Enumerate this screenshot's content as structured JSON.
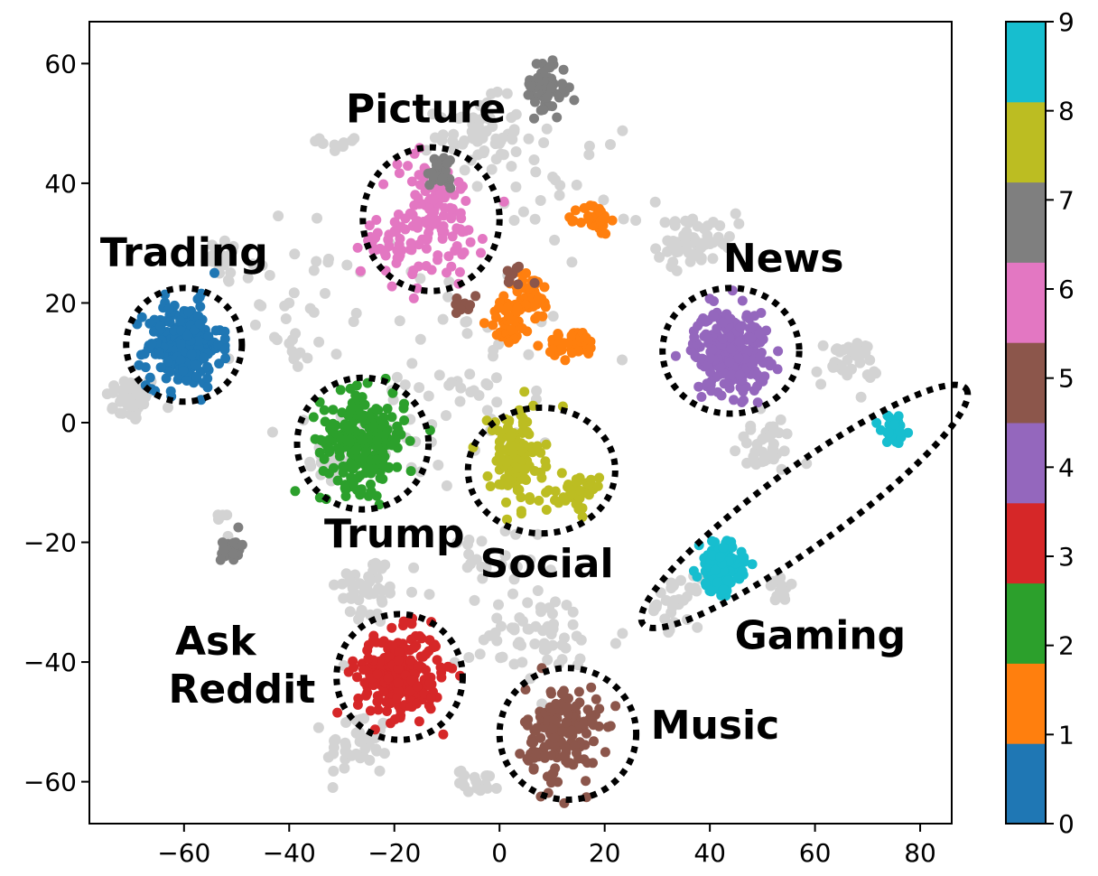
{
  "chart_data": {
    "type": "scatter",
    "title": "",
    "xlabel": "",
    "ylabel": "",
    "xlim": [
      -78,
      86
    ],
    "ylim": [
      -67,
      67
    ],
    "x_ticks": [
      -60,
      -40,
      -20,
      0,
      20,
      40,
      60,
      80
    ],
    "y_ticks": [
      -60,
      -40,
      -20,
      0,
      20,
      40,
      60
    ],
    "x_tick_labels": [
      "−60",
      "−40",
      "−20",
      "0",
      "20",
      "40",
      "60",
      "80"
    ],
    "y_tick_labels": [
      "−60",
      "−40",
      "−20",
      "0",
      "20",
      "40",
      "60"
    ],
    "grid": false,
    "colormap": "tab10",
    "colorbar": {
      "range": [
        0,
        9
      ],
      "ticks": [
        "0",
        "1",
        "2",
        "3",
        "4",
        "5",
        "6",
        "7",
        "8",
        "9"
      ],
      "colors": [
        "#1f77b4",
        "#ff7f0e",
        "#2ca02c",
        "#d62728",
        "#9467bd",
        "#8c564b",
        "#e377c2",
        "#7f7f7f",
        "#bcbd22",
        "#17becf"
      ]
    },
    "background_color": "#d3d3d3",
    "background_clusters": [
      {
        "cx": -70,
        "cy": 4,
        "sx": 2.5,
        "sy": 2,
        "n": 45
      },
      {
        "cx": -52,
        "cy": 27,
        "sx": 2,
        "sy": 2,
        "n": 20
      },
      {
        "cx": -27,
        "cy": -3,
        "sx": 4,
        "sy": 3,
        "n": 55
      },
      {
        "cx": -33,
        "cy": -7,
        "sx": 2,
        "sy": 2,
        "n": 15
      },
      {
        "cx": -25,
        "cy": -28,
        "sx": 3,
        "sy": 3,
        "n": 45
      },
      {
        "cx": -27,
        "cy": -54,
        "sx": 3,
        "sy": 3,
        "n": 40
      },
      {
        "cx": -4,
        "cy": 48,
        "sx": 4,
        "sy": 3,
        "n": 60
      },
      {
        "cx": -30,
        "cy": 47,
        "sx": 2,
        "sy": 1,
        "n": 10
      },
      {
        "cx": 36,
        "cy": 30,
        "sx": 3,
        "sy": 2,
        "n": 50
      },
      {
        "cx": 42,
        "cy": 32,
        "sx": 1.5,
        "sy": 1.5,
        "n": 10
      },
      {
        "cx": 66,
        "cy": 10,
        "sx": 3,
        "sy": 2,
        "n": 35
      },
      {
        "cx": 50,
        "cy": -4,
        "sx": 3,
        "sy": 2.5,
        "n": 35
      },
      {
        "cx": 34,
        "cy": -30,
        "sx": 2,
        "sy": 2,
        "n": 30
      },
      {
        "cx": 54,
        "cy": -28,
        "sx": 1.5,
        "sy": 1,
        "n": 12
      },
      {
        "cx": 8,
        "cy": -36,
        "sx": 8,
        "sy": 4,
        "n": 60
      },
      {
        "cx": -4,
        "cy": -60,
        "sx": 2,
        "sy": 1,
        "n": 20
      },
      {
        "cx": -39,
        "cy": 22,
        "sx": 6,
        "sy": 6,
        "n": 30
      },
      {
        "cx": -11,
        "cy": 5,
        "sx": 6,
        "sy": 8,
        "n": 35
      },
      {
        "cx": 12,
        "cy": 40,
        "sx": 8,
        "sy": 6,
        "n": 30
      },
      {
        "cx": 0,
        "cy": 12,
        "sx": 8,
        "sy": 8,
        "n": 25
      },
      {
        "cx": -5,
        "cy": -25,
        "sx": 6,
        "sy": 4,
        "n": 25
      },
      {
        "cx": -53,
        "cy": -16,
        "sx": 1,
        "sy": 1,
        "n": 5
      },
      {
        "cx": -38,
        "cy": 12,
        "sx": 2,
        "sy": 2,
        "n": 10
      }
    ],
    "clusters": [
      {
        "label": 0,
        "cx": -60,
        "cy": 13,
        "sx": 3.5,
        "sy": 3.5,
        "n": 260
      },
      {
        "label": 1,
        "cx": 18,
        "cy": 34,
        "sx": 1.5,
        "sy": 1.3,
        "n": 40
      },
      {
        "label": 1,
        "cx": 6,
        "cy": 21,
        "sx": 2,
        "sy": 2,
        "n": 40
      },
      {
        "label": 1,
        "cx": 2,
        "cy": 17,
        "sx": 2,
        "sy": 2,
        "n": 40
      },
      {
        "label": 1,
        "cx": 14,
        "cy": 13,
        "sx": 2.5,
        "sy": 1.2,
        "n": 40
      },
      {
        "label": 2,
        "cx": -26,
        "cy": -3,
        "sx": 4,
        "sy": 4,
        "n": 230
      },
      {
        "label": 3,
        "cx": -19,
        "cy": -42,
        "sx": 4,
        "sy": 3.5,
        "n": 250
      },
      {
        "label": 4,
        "cx": 44,
        "cy": 12,
        "sx": 3.5,
        "sy": 3.5,
        "n": 260
      },
      {
        "label": 5,
        "cx": 12,
        "cy": -52,
        "sx": 3.5,
        "sy": 4,
        "n": 160
      },
      {
        "label": 5,
        "cx": -7,
        "cy": 20,
        "sx": 1,
        "sy": 1,
        "n": 10
      },
      {
        "label": 5,
        "cx": 4,
        "cy": 25,
        "sx": 1.5,
        "sy": 1,
        "n": 8
      },
      {
        "label": 6,
        "cx": -13,
        "cy": 34,
        "sx": 5,
        "sy": 5,
        "n": 120
      },
      {
        "label": 6,
        "cx": -20,
        "cy": 30,
        "sx": 3,
        "sy": 2,
        "n": 30
      },
      {
        "label": 7,
        "cx": 9,
        "cy": 56,
        "sx": 2,
        "sy": 2.5,
        "n": 60
      },
      {
        "label": 7,
        "cx": -11,
        "cy": 42,
        "sx": 1.5,
        "sy": 1.5,
        "n": 25
      },
      {
        "label": 7,
        "cx": -51,
        "cy": -21,
        "sx": 1,
        "sy": 1.2,
        "n": 25
      },
      {
        "label": 8,
        "cx": 3,
        "cy": -6,
        "sx": 2.5,
        "sy": 4,
        "n": 130
      },
      {
        "label": 8,
        "cx": 15,
        "cy": -12,
        "sx": 2,
        "sy": 1.5,
        "n": 40
      },
      {
        "label": 9,
        "cx": 42,
        "cy": -24,
        "sx": 2,
        "sy": 2,
        "n": 150
      },
      {
        "label": 9,
        "cx": 75,
        "cy": -1,
        "sx": 1.2,
        "sy": 1.2,
        "n": 40
      }
    ],
    "annotations": [
      {
        "text": "Trading",
        "x": -60,
        "y": 28
      },
      {
        "text": "Picture",
        "x": -14,
        "y": 52
      },
      {
        "text": "News",
        "x": 54,
        "y": 27
      },
      {
        "text": "Trump",
        "x": -20,
        "y": -19
      },
      {
        "text": "Social",
        "x": 9,
        "y": -24
      },
      {
        "text": "Gaming",
        "x": 61,
        "y": -36
      },
      {
        "text": "Ask",
        "x": -54,
        "y": -37
      },
      {
        "text": "Reddit",
        "x": -49,
        "y": -45
      },
      {
        "text": "Music",
        "x": 41,
        "y": -51
      }
    ],
    "highlight_shapes": [
      {
        "label": "Trading",
        "cx": -60,
        "cy": 13,
        "rx": 11,
        "ry": 9.5,
        "angle": 0
      },
      {
        "label": "Picture",
        "cx": -13,
        "cy": 34,
        "rx": 13,
        "ry": 12,
        "angle": 0
      },
      {
        "label": "News",
        "cx": 44,
        "cy": 12,
        "rx": 13,
        "ry": 10.5,
        "angle": 0
      },
      {
        "label": "Trump",
        "cx": -26,
        "cy": -3.5,
        "rx": 12.5,
        "ry": 11,
        "angle": 0
      },
      {
        "label": "Social",
        "cx": 8,
        "cy": -8,
        "rx": 14,
        "ry": 10.5,
        "angle": 0
      },
      {
        "label": "Gaming",
        "cx": 58,
        "cy": -14,
        "rx": 38,
        "ry": 6.5,
        "angle": 36
      },
      {
        "label": "Ask Reddit",
        "cx": -19,
        "cy": -42.5,
        "rx": 12,
        "ry": 10.5,
        "angle": 0
      },
      {
        "label": "Music",
        "cx": 13,
        "cy": -52,
        "rx": 13,
        "ry": 11,
        "angle": 0
      }
    ]
  }
}
